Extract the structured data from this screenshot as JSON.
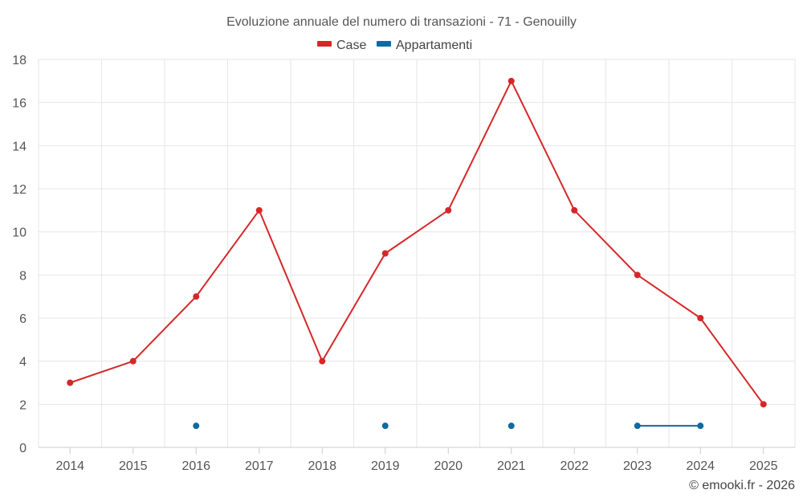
{
  "chart_data": {
    "type": "line",
    "title": "Evoluzione annuale del numero di transazioni - 71 - Genouilly",
    "categories": [
      "2014",
      "2015",
      "2016",
      "2017",
      "2018",
      "2019",
      "2020",
      "2021",
      "2022",
      "2023",
      "2024",
      "2025"
    ],
    "series": [
      {
        "name": "Case",
        "color": "#d62728",
        "values": [
          3,
          4,
          7,
          11,
          4,
          9,
          11,
          17,
          11,
          8,
          6,
          2
        ]
      },
      {
        "name": "Appartamenti",
        "color": "#0e6aa0",
        "values": [
          null,
          null,
          1,
          null,
          null,
          1,
          null,
          1,
          null,
          1,
          1,
          null
        ]
      }
    ],
    "ylim": [
      0,
      18
    ],
    "yticks": [
      0,
      2,
      4,
      6,
      8,
      10,
      12,
      14,
      16,
      18
    ],
    "grid": true,
    "legend": "top-center",
    "xlabel": "",
    "ylabel": ""
  },
  "credit": "© emooki.fr - 2026"
}
